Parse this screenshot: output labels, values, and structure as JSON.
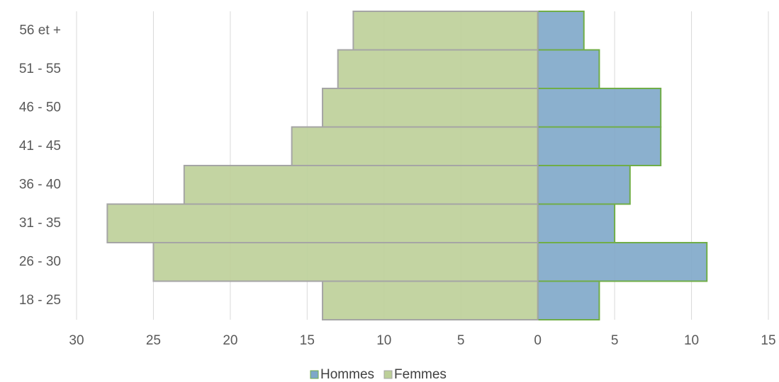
{
  "chart_data": {
    "type": "pyramid",
    "categories": [
      "18 - 25",
      "26 - 30",
      "31 - 35",
      "36 - 40",
      "41 - 45",
      "46 - 50",
      "51 - 55",
      "56 et +"
    ],
    "series": [
      {
        "name": "Hommes",
        "color": "#7ea7c9",
        "values": [
          4,
          11,
          5,
          6,
          8,
          8,
          4,
          3
        ]
      },
      {
        "name": "Femmes",
        "color": "#bccf98",
        "values": [
          -14,
          -25,
          -28,
          -23,
          -16,
          -14,
          -13,
          -12
        ]
      }
    ],
    "xlim": [
      -30,
      15
    ],
    "xticks": [
      {
        "value": -30,
        "label": "30"
      },
      {
        "value": -25,
        "label": "25"
      },
      {
        "value": -20,
        "label": "20"
      },
      {
        "value": -15,
        "label": "15"
      },
      {
        "value": -10,
        "label": "10"
      },
      {
        "value": -5,
        "label": "5"
      },
      0,
      5,
      10,
      15
    ],
    "grid": true,
    "legend": "bottom"
  }
}
